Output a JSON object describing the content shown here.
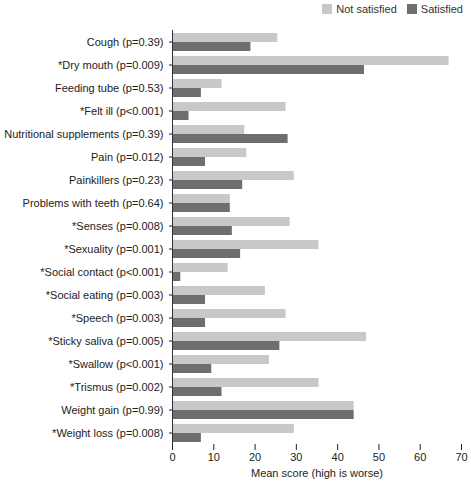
{
  "chart_data": {
    "type": "bar",
    "orientation": "horizontal",
    "categories": [
      "Cough (p=0.39)",
      "*Dry mouth (p=0.009)",
      "Feeding tube (p=0.53)",
      "*Felt ill (p<0.001)",
      "Nutritional supplements (p=0.39)",
      "Pain (p=0.012)",
      "Painkillers (p=0.23)",
      "Problems with teeth (p=0.64)",
      "*Senses (p=0.008)",
      "*Sexuality (p=0.001)",
      "*Social contact (p<0.001)",
      "*Social eating (p=0.003)",
      "*Speech (p=0.003)",
      "*Sticky saliva (p=0.005)",
      "*Swallow (p<0.001)",
      "*Trismus (p=0.002)",
      "Weight gain (p=0.99)",
      "*Weight loss (p=0.008)"
    ],
    "series": [
      {
        "name": "Not satisfied",
        "color": "#c8c8c8",
        "values": [
          25.5,
          67,
          12,
          27.5,
          17.5,
          18,
          29.5,
          14,
          28.5,
          35.5,
          13.5,
          22.5,
          27.5,
          47,
          23.5,
          35.5,
          44,
          29.5
        ]
      },
      {
        "name": "Satisfied",
        "color": "#6e6e6e",
        "values": [
          19,
          46.5,
          7,
          4,
          28,
          8,
          17,
          14,
          14.5,
          16.5,
          2,
          8,
          8,
          26,
          9.5,
          12,
          44,
          7
        ]
      }
    ],
    "x_label": "Mean score (high is worse)",
    "xlim": [
      0,
      70
    ],
    "xticks": [
      0,
      10,
      20,
      30,
      40,
      50,
      60,
      70
    ],
    "legend": "top-right",
    "grid": false
  }
}
